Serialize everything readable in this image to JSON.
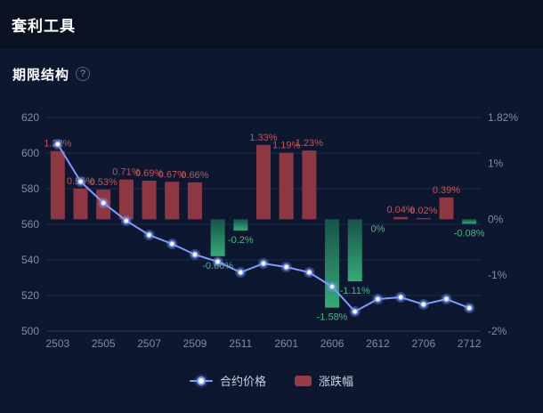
{
  "header": {
    "title": "套利工具"
  },
  "section": {
    "title": "期限结构",
    "help_icon": "?"
  },
  "legend": {
    "items": [
      {
        "label": "合约价格",
        "type": "line"
      },
      {
        "label": "涨跌幅",
        "type": "bar"
      }
    ]
  },
  "colors": {
    "background": "#0d1830",
    "header_background": "#0a1120",
    "line": "#7c9cff",
    "line_glow": "rgba(124,156,255,0.35)",
    "bar_up": "#993a44",
    "bar_down": "#37b97e",
    "bar_down_top": "#17584a",
    "label_up": "#c25358",
    "label_down": "#3fbb7c",
    "axis_text": "#7e8ca8",
    "grid": "#1d2b49",
    "axis_line": "#2a3b5e"
  },
  "chart_data": {
    "type": "combo",
    "title": "期限结构",
    "x_count": 19,
    "x_tick_indices": [
      0,
      2,
      4,
      6,
      8,
      10,
      12,
      14,
      16,
      18
    ],
    "x_tick_labels": [
      "2503",
      "2505",
      "2507",
      "2509",
      "2511",
      "2601",
      "2606",
      "2612",
      "2706",
      "2712"
    ],
    "series": [
      {
        "name": "合约价格",
        "type": "line",
        "y_axis": "left",
        "values": [
          605,
          584,
          572,
          562,
          554,
          549,
          543,
          539,
          533,
          538,
          536,
          533,
          525,
          511,
          518,
          519,
          515,
          518,
          513
        ]
      },
      {
        "name": "涨跌幅",
        "type": "bar",
        "y_axis": "right",
        "values": [
          1.22,
          0.55,
          0.53,
          0.71,
          0.69,
          0.67,
          0.66,
          -0.66,
          -0.2,
          1.33,
          1.19,
          1.23,
          -1.58,
          -1.11,
          0,
          0.04,
          0.02,
          0.39,
          -0.08
        ],
        "labels": [
          "1.22%",
          "0.55%",
          "0.53%",
          "0.71%",
          "0.69%",
          "0.67%",
          "0.66%",
          "-0.66%",
          "-0.2%",
          "1.33%",
          "1.19%",
          "1.23%",
          "-1.58%",
          "-1.11%",
          "0%",
          "0.04%",
          "0.02%",
          "0.39%",
          "-0.08%"
        ]
      }
    ],
    "left_axis": {
      "min": 500,
      "max": 620,
      "ticks": [
        620,
        600,
        580,
        560,
        540,
        520,
        500
      ],
      "labels": [
        "620",
        "600",
        "580",
        "560",
        "540",
        "520",
        "500"
      ]
    },
    "right_axis": {
      "min": -2,
      "max": 1.82,
      "ticks": [
        1.82,
        1,
        0,
        -1,
        -2
      ],
      "labels": [
        "1.82%",
        "1%",
        "0%",
        "-1%",
        "-2%"
      ]
    },
    "grid": true,
    "legend_position": "bottom"
  }
}
